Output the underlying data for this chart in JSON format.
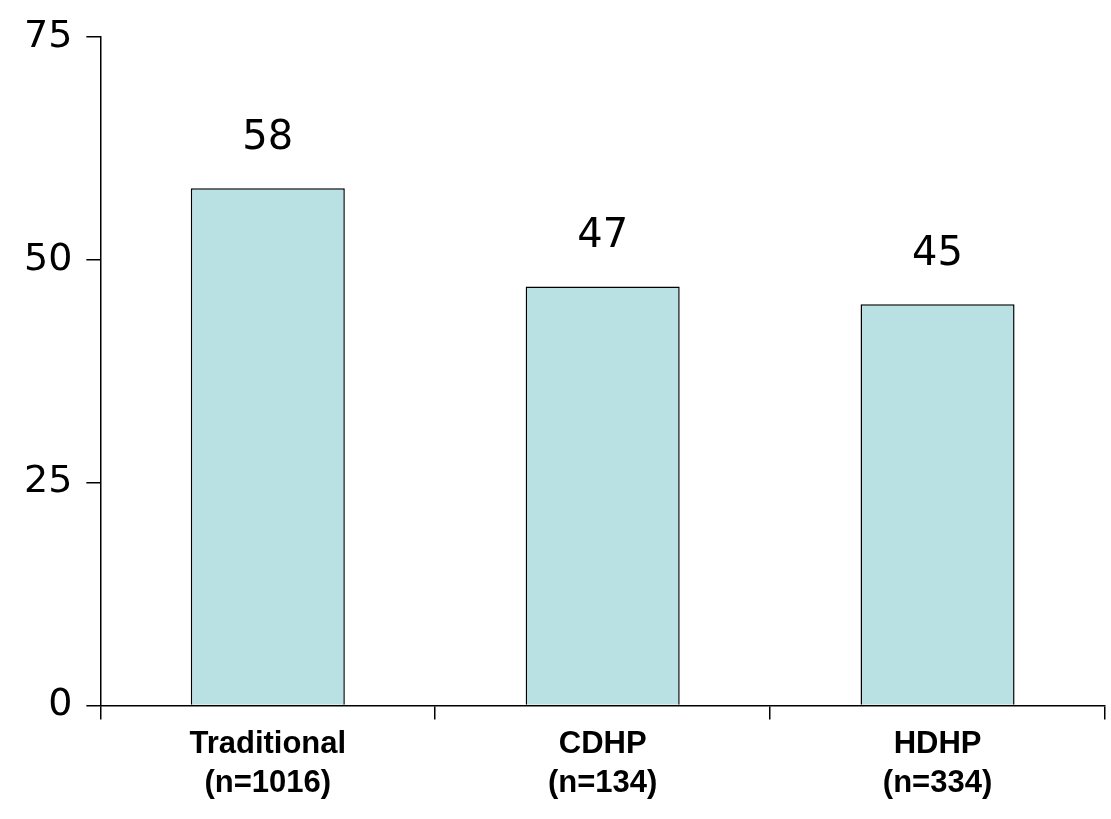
{
  "chart_data": {
    "type": "bar",
    "categories": [
      "Traditional\n(n=1016)",
      "CDHP\n(n=134)",
      "HDHP\n(n=334)"
    ],
    "values": [
      58,
      47,
      45
    ],
    "color": "#b9e0e3",
    "ylim": [
      0,
      75
    ],
    "yticks": [
      0,
      25,
      50,
      75
    ],
    "grid": false,
    "legend": false,
    "data_labels": true
  }
}
